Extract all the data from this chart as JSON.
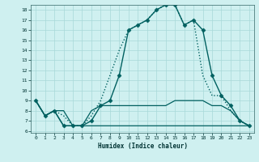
{
  "xlabel": "Humidex (Indice chaleur)",
  "bg_color": "#cff0f0",
  "grid_color": "#a8d8d8",
  "line_color": "#006060",
  "xlim": [
    -0.5,
    23.5
  ],
  "ylim": [
    5.8,
    18.5
  ],
  "yticks": [
    6,
    7,
    8,
    9,
    10,
    11,
    12,
    13,
    14,
    15,
    16,
    17,
    18
  ],
  "xticks": [
    0,
    1,
    2,
    3,
    4,
    5,
    6,
    7,
    8,
    9,
    10,
    11,
    12,
    13,
    14,
    15,
    16,
    17,
    18,
    19,
    20,
    21,
    22,
    23
  ],
  "series": [
    {
      "x": [
        0,
        1,
        2,
        3,
        4,
        5,
        6,
        7,
        8,
        9,
        10,
        11,
        12,
        13,
        14,
        15,
        16,
        17,
        18,
        19,
        20,
        21,
        22,
        23
      ],
      "y": [
        9.0,
        7.5,
        8.0,
        6.5,
        6.5,
        6.5,
        7.0,
        8.5,
        9.0,
        11.5,
        16.0,
        16.5,
        17.0,
        18.0,
        18.5,
        18.5,
        16.5,
        17.0,
        16.0,
        11.5,
        9.5,
        8.5,
        7.0,
        6.5
      ],
      "style": "-",
      "marker": "D",
      "markersize": 2.5,
      "lw": 1.0
    },
    {
      "x": [
        0,
        1,
        2,
        3,
        4,
        5,
        6,
        7,
        8,
        9,
        10,
        11,
        12,
        13,
        14,
        15,
        16,
        17,
        18,
        19,
        20,
        21,
        22,
        23
      ],
      "y": [
        9.0,
        7.5,
        8.0,
        8.0,
        6.5,
        6.5,
        8.0,
        8.5,
        8.5,
        8.5,
        8.5,
        8.5,
        8.5,
        8.5,
        8.5,
        9.0,
        9.0,
        9.0,
        9.0,
        8.5,
        8.5,
        8.0,
        7.0,
        6.5
      ],
      "style": "-",
      "marker": null,
      "markersize": 0,
      "lw": 0.9
    },
    {
      "x": [
        0,
        1,
        2,
        3,
        4,
        5,
        6,
        7,
        8,
        9,
        10,
        11,
        12,
        13,
        14,
        15,
        16,
        17,
        18,
        19,
        20,
        21,
        22,
        23
      ],
      "y": [
        9.0,
        7.5,
        8.0,
        6.5,
        6.5,
        6.5,
        6.5,
        6.5,
        6.5,
        6.5,
        6.5,
        6.5,
        6.5,
        6.5,
        6.5,
        6.5,
        6.5,
        6.5,
        6.5,
        6.5,
        6.5,
        6.5,
        6.5,
        6.5
      ],
      "style": "-",
      "marker": null,
      "markersize": 0,
      "lw": 0.9
    },
    {
      "x": [
        0,
        1,
        2,
        3,
        4,
        5,
        6,
        7,
        8,
        9,
        10,
        11,
        12,
        13,
        14,
        15,
        16,
        17,
        18,
        19,
        20,
        21,
        22,
        23
      ],
      "y": [
        9.0,
        7.5,
        8.0,
        7.5,
        6.5,
        6.5,
        7.5,
        9.0,
        11.5,
        14.0,
        16.0,
        16.5,
        17.0,
        18.0,
        18.5,
        18.5,
        16.5,
        17.0,
        11.5,
        9.5,
        9.5,
        8.0,
        7.0,
        6.5
      ],
      "style": ":",
      "marker": null,
      "markersize": 0,
      "lw": 1.0
    }
  ]
}
